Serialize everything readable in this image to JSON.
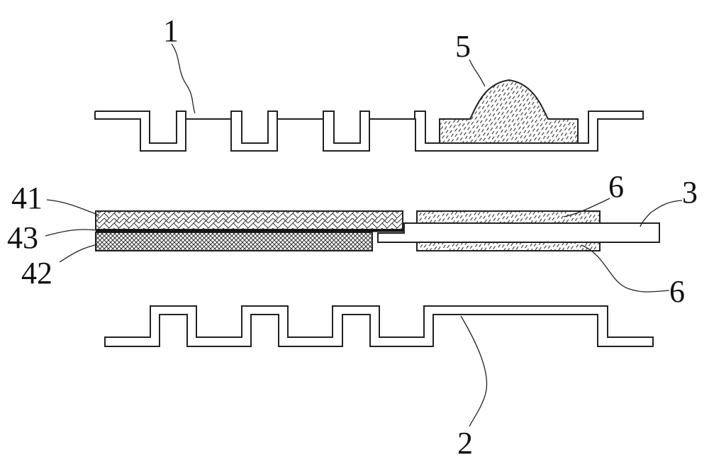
{
  "labels": {
    "upper_plate": "1",
    "lower_plate": "2",
    "strip": "3",
    "layer_top": "41",
    "layer_bottom": "42",
    "layer_mid": "43",
    "bump": "5",
    "pad_top": "6",
    "pad_bottom": "6"
  },
  "colors": {
    "stroke": "#222222",
    "hatch": "#333333",
    "background": "#ffffff"
  }
}
